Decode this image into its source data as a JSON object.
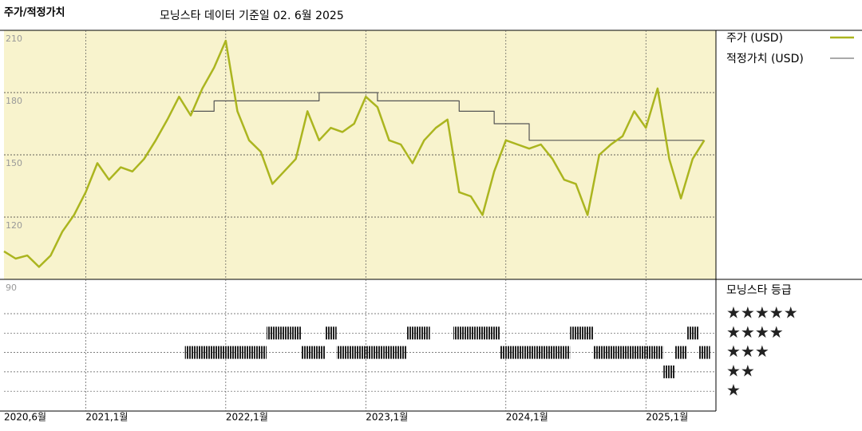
{
  "chart_data": {
    "type": "line",
    "title": "주가/적정가치",
    "subtitle": "모닝스타 데이터 기준일 02. 6월 2025",
    "x": [
      "2020-06",
      "2020-07",
      "2020-08",
      "2020-09",
      "2020-10",
      "2020-11",
      "2020-12",
      "2021-01",
      "2021-02",
      "2021-03",
      "2021-04",
      "2021-05",
      "2021-06",
      "2021-07",
      "2021-08",
      "2021-09",
      "2021-10",
      "2021-11",
      "2021-12",
      "2022-01",
      "2022-02",
      "2022-03",
      "2022-04",
      "2022-05",
      "2022-06",
      "2022-07",
      "2022-08",
      "2022-09",
      "2022-10",
      "2022-11",
      "2022-12",
      "2023-01",
      "2023-02",
      "2023-03",
      "2023-04",
      "2023-05",
      "2023-06",
      "2023-07",
      "2023-08",
      "2023-09",
      "2023-10",
      "2023-11",
      "2023-12",
      "2024-01",
      "2024-02",
      "2024-03",
      "2024-04",
      "2024-05",
      "2024-06",
      "2024-07",
      "2024-08",
      "2024-09",
      "2024-10",
      "2024-11",
      "2024-12",
      "2025-01",
      "2025-02",
      "2025-03",
      "2025-04",
      "2025-05",
      "2025-06"
    ],
    "series": [
      {
        "name": "주가 (USD)",
        "color": "#abb51f",
        "values": [
          103.5,
          100,
          101.5,
          96,
          101.5,
          113,
          121,
          132,
          146,
          138,
          144,
          142,
          148,
          157,
          167,
          178,
          169,
          182,
          192,
          205,
          171,
          157,
          151.5,
          136,
          142,
          148,
          171,
          157,
          163,
          161,
          165,
          178,
          173,
          157,
          155,
          146,
          157,
          163,
          167,
          132,
          130,
          121,
          142,
          157,
          155,
          153,
          155,
          148,
          138,
          136,
          121,
          150,
          155,
          159,
          171,
          163,
          182,
          148,
          129,
          148,
          157
        ]
      },
      {
        "name": "적정가치 (USD)",
        "color": "#555555",
        "step": "post",
        "values": [
          null,
          null,
          null,
          null,
          null,
          null,
          null,
          null,
          null,
          null,
          null,
          null,
          null,
          null,
          null,
          null,
          171,
          171,
          176,
          176,
          176,
          176,
          176,
          176,
          176,
          176,
          176,
          180,
          180,
          180,
          180,
          180,
          176,
          176,
          176,
          176,
          176,
          176,
          176,
          171,
          171,
          171,
          165,
          165,
          165,
          157,
          157,
          157,
          157,
          157,
          157,
          157,
          157,
          157,
          157,
          157,
          157,
          157,
          157,
          157,
          157
        ]
      }
    ],
    "xlim": [
      "2020-06",
      "2025-07"
    ],
    "xticks": [
      {
        "value": "2020-06",
        "label": "2020,6월"
      },
      {
        "value": "2021-01",
        "label": "2021,1월"
      },
      {
        "value": "2022-01",
        "label": "2022,1월"
      },
      {
        "value": "2023-01",
        "label": "2023,1월"
      },
      {
        "value": "2024-01",
        "label": "2024,1월"
      },
      {
        "value": "2025-01",
        "label": "2025,1월"
      }
    ],
    "ylim": [
      90,
      210
    ],
    "yticks": [
      90,
      120,
      150,
      180,
      210
    ],
    "grid": true,
    "background": "#f8f3cd",
    "rating": {
      "title": "모닝스타 등급",
      "color": "#222222",
      "levels": [
        {
          "value": 5,
          "label": "★★★★★"
        },
        {
          "value": 4,
          "label": "★★★★"
        },
        {
          "value": 3,
          "label": "★★★"
        },
        {
          "value": 2,
          "label": "★★"
        },
        {
          "value": 1,
          "label": "★"
        }
      ],
      "values": [
        null,
        null,
        null,
        null,
        null,
        null,
        null,
        null,
        null,
        null,
        null,
        null,
        null,
        null,
        null,
        null,
        3,
        3,
        3,
        3,
        3,
        3,
        3,
        4,
        4,
        4,
        3,
        3,
        4,
        3,
        3,
        3,
        3,
        3,
        3,
        4,
        4,
        null,
        null,
        4,
        4,
        4,
        4,
        3,
        3,
        3,
        3,
        3,
        3,
        4,
        4,
        3,
        3,
        3,
        3,
        3,
        3,
        2,
        3,
        4,
        3
      ]
    }
  }
}
